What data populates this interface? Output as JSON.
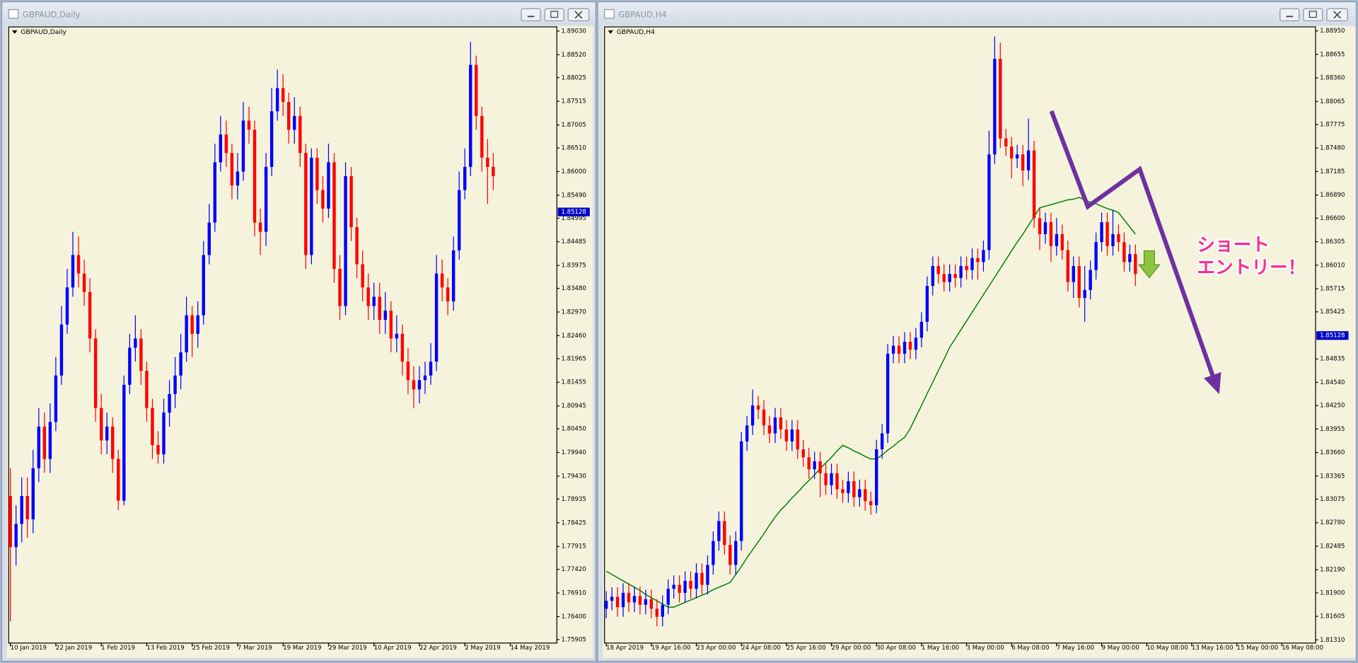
{
  "chart_data": [
    {
      "type": "candlestick",
      "window_title": "GBPAUD,Daily",
      "title": "GBPAUD,Daily",
      "background": "#f5f3dc",
      "up_color": "#0000ff",
      "down_color": "#ff0000",
      "grid": false,
      "xlim": [
        -0.3,
        96.2
      ],
      "ylim": [
        1.7583,
        1.8912
      ],
      "xticks": [
        {
          "value": 0,
          "label": "10 Jan 2019"
        },
        {
          "value": 8,
          "label": "22 Jan 2019"
        },
        {
          "value": 16,
          "label": "1 Feb 2019"
        },
        {
          "value": 24,
          "label": "13 Feb 2019"
        },
        {
          "value": 32,
          "label": "25 Feb 2019"
        },
        {
          "value": 40,
          "label": "7 Mar 2019"
        },
        {
          "value": 48,
          "label": "19 Mar 2019"
        },
        {
          "value": 56,
          "label": "29 Mar 2019"
        },
        {
          "value": 64,
          "label": "10 Apr 2019"
        },
        {
          "value": 72,
          "label": "22 Apr 2019"
        },
        {
          "value": 80,
          "label": "2 May 2019"
        },
        {
          "value": 88,
          "label": "14 May 2019"
        }
      ],
      "yticks": [
        {
          "value": 1.8903,
          "label": "1.89030"
        },
        {
          "value": 1.8852,
          "label": "1.88520"
        },
        1.88025,
        1.87515,
        1.87005,
        {
          "value": 1.8651,
          "label": "1.86510"
        },
        {
          "value": 1.86,
          "label": "1.86000"
        },
        {
          "value": 1.8549,
          "label": "1.85490"
        },
        1.84995,
        1.84485,
        1.83975,
        {
          "value": 1.8348,
          "label": "1.83480"
        },
        {
          "value": 1.8297,
          "label": "1.82970"
        },
        {
          "value": 1.8246,
          "label": "1.82460"
        },
        1.81965,
        1.81455,
        1.80945,
        {
          "value": 1.8045,
          "label": "1.80450"
        },
        {
          "value": 1.7994,
          "label": "1.79940"
        },
        {
          "value": 1.7943,
          "label": "1.79430"
        },
        1.78935,
        1.78425,
        1.77915,
        {
          "value": 1.7742,
          "label": "1.77420"
        },
        {
          "value": 1.7691,
          "label": "1.76910"
        },
        {
          "value": 1.764,
          "label": "1.76400"
        },
        1.75905
      ],
      "current_price": 1.85128,
      "open": [
        1.79,
        1.779,
        1.784,
        1.79,
        1.785,
        1.796,
        1.805,
        1.798,
        1.806,
        1.816,
        1.827,
        1.835,
        1.842,
        1.838,
        1.834,
        1.824,
        1.809,
        1.802,
        1.805,
        1.798,
        1.789,
        1.814,
        1.822,
        1.824,
        1.817,
        1.809,
        1.801,
        1.799,
        1.808,
        1.812,
        1.816,
        1.821,
        1.829,
        1.825,
        1.829,
        1.842,
        1.849,
        1.862,
        1.868,
        1.864,
        1.857,
        1.86,
        1.871,
        1.869,
        1.849,
        1.847,
        1.861,
        1.873,
        1.878,
        1.875,
        1.869,
        1.872,
        1.864,
        1.842,
        1.863,
        1.856,
        1.852,
        1.862,
        1.839,
        1.831,
        1.859,
        1.848,
        1.84,
        1.835,
        1.831,
        1.833,
        1.828,
        1.83,
        1.824,
        1.825,
        1.819,
        1.815,
        1.813,
        1.815,
        1.816,
        1.819,
        1.838,
        1.835,
        1.832,
        1.843,
        1.856,
        1.861,
        1.883,
        1.872,
        1.863,
        1.861
      ],
      "high": [
        1.796,
        1.788,
        1.794,
        1.794,
        1.8,
        1.809,
        1.808,
        1.81,
        1.82,
        1.831,
        1.839,
        1.847,
        1.846,
        1.841,
        1.837,
        1.826,
        1.812,
        1.808,
        1.807,
        1.8,
        1.816,
        1.825,
        1.829,
        1.826,
        1.819,
        1.811,
        1.804,
        1.811,
        1.815,
        1.82,
        1.825,
        1.833,
        1.831,
        1.832,
        1.845,
        1.853,
        1.866,
        1.872,
        1.871,
        1.866,
        1.864,
        1.875,
        1.874,
        1.871,
        1.852,
        1.864,
        1.878,
        1.882,
        1.881,
        1.877,
        1.876,
        1.874,
        1.866,
        1.865,
        1.865,
        1.859,
        1.866,
        1.864,
        1.842,
        1.862,
        1.861,
        1.85,
        1.843,
        1.838,
        1.836,
        1.836,
        1.834,
        1.832,
        1.829,
        1.827,
        1.822,
        1.818,
        1.818,
        1.819,
        1.823,
        1.842,
        1.841,
        1.837,
        1.846,
        1.86,
        1.865,
        1.888,
        1.885,
        1.874,
        1.867,
        1.864
      ],
      "low": [
        1.763,
        1.775,
        1.78,
        1.781,
        1.782,
        1.793,
        1.795,
        1.795,
        1.804,
        1.814,
        1.825,
        1.833,
        1.835,
        1.831,
        1.821,
        1.806,
        1.799,
        1.799,
        1.795,
        1.787,
        1.788,
        1.812,
        1.819,
        1.814,
        1.806,
        1.798,
        1.797,
        1.797,
        1.805,
        1.809,
        1.813,
        1.819,
        1.82,
        1.822,
        1.827,
        1.84,
        1.847,
        1.86,
        1.861,
        1.854,
        1.854,
        1.858,
        1.866,
        1.846,
        1.842,
        1.844,
        1.859,
        1.871,
        1.872,
        1.866,
        1.866,
        1.861,
        1.839,
        1.84,
        1.853,
        1.849,
        1.85,
        1.836,
        1.828,
        1.829,
        1.845,
        1.837,
        1.832,
        1.828,
        1.828,
        1.825,
        1.825,
        1.821,
        1.821,
        1.816,
        1.812,
        1.809,
        1.81,
        1.812,
        1.814,
        1.817,
        1.832,
        1.829,
        1.83,
        1.841,
        1.854,
        1.859,
        1.869,
        1.86,
        1.853,
        1.856
      ],
      "close": [
        1.779,
        1.784,
        1.79,
        1.785,
        1.796,
        1.805,
        1.798,
        1.806,
        1.816,
        1.827,
        1.835,
        1.842,
        1.838,
        1.834,
        1.824,
        1.809,
        1.802,
        1.805,
        1.798,
        1.789,
        1.814,
        1.822,
        1.824,
        1.817,
        1.809,
        1.801,
        1.799,
        1.808,
        1.812,
        1.816,
        1.821,
        1.829,
        1.825,
        1.829,
        1.842,
        1.849,
        1.862,
        1.868,
        1.864,
        1.857,
        1.86,
        1.871,
        1.869,
        1.849,
        1.847,
        1.861,
        1.873,
        1.878,
        1.875,
        1.869,
        1.872,
        1.864,
        1.842,
        1.863,
        1.856,
        1.852,
        1.862,
        1.839,
        1.831,
        1.859,
        1.848,
        1.84,
        1.835,
        1.831,
        1.833,
        1.828,
        1.83,
        1.824,
        1.825,
        1.819,
        1.815,
        1.813,
        1.815,
        1.816,
        1.819,
        1.838,
        1.835,
        1.832,
        1.843,
        1.856,
        1.861,
        1.883,
        1.872,
        1.863,
        1.861,
        1.859
      ]
    },
    {
      "type": "candlestick",
      "window_title": "GBPAUD,H4",
      "title": "GBPAUD,H4",
      "background": "#f5f3dc",
      "up_color": "#0000ff",
      "down_color": "#ff0000",
      "grid": false,
      "moving_average_color": "#008000",
      "annotation": [
        "ショート",
        "エントリー！"
      ],
      "xlim": [
        -0.31,
        126.0
      ],
      "ylim": [
        1.8127,
        1.89
      ],
      "xticks": [
        {
          "value": 0,
          "label": "18 Apr 2019"
        },
        {
          "value": 8,
          "label": "19 Apr 16:00"
        },
        {
          "value": 16,
          "label": "23 Apr 00:00"
        },
        {
          "value": 24,
          "label": "24 Apr 08:00"
        },
        {
          "value": 32,
          "label": "25 Apr 16:00"
        },
        {
          "value": 40,
          "label": "29 Apr 00:00"
        },
        {
          "value": 48,
          "label": "30 Apr 08:00"
        },
        {
          "value": 56,
          "label": "1 May 16:00"
        },
        {
          "value": 64,
          "label": "3 May 00:00"
        },
        {
          "value": 72,
          "label": "6 May 08:00"
        },
        {
          "value": 80,
          "label": "7 May 16:00"
        },
        {
          "value": 88,
          "label": "9 May 00:00"
        },
        {
          "value": 96,
          "label": "10 May 08:00"
        },
        {
          "value": 104,
          "label": "13 May 16:00"
        },
        {
          "value": 112,
          "label": "15 May 00:00"
        },
        {
          "value": 120,
          "label": "16 May 08:00"
        }
      ],
      "yticks": [
        {
          "value": 1.8895,
          "label": "1.88950"
        },
        1.88655,
        {
          "value": 1.8836,
          "label": "1.88360"
        },
        1.88065,
        1.87775,
        {
          "value": 1.8748,
          "label": "1.87480"
        },
        1.87185,
        {
          "value": 1.8689,
          "label": "1.86890"
        },
        {
          "value": 1.866,
          "label": "1.86600"
        },
        1.86305,
        {
          "value": 1.8601,
          "label": "1.86010"
        },
        1.85715,
        1.85425,
        1.84835,
        {
          "value": 1.8454,
          "label": "1.84540"
        },
        {
          "value": 1.8425,
          "label": "1.84250"
        },
        1.83955,
        {
          "value": 1.8366,
          "label": "1.83660"
        },
        1.83365,
        1.83075,
        {
          "value": 1.8278,
          "label": "1.82780"
        },
        1.82485,
        {
          "value": 1.8219,
          "label": "1.82190"
        },
        {
          "value": 1.819,
          "label": "1.81900"
        },
        1.81605,
        {
          "value": 1.8131,
          "label": "1.81310"
        }
      ],
      "current_price": 1.85128,
      "open": [
        1.817,
        1.818,
        1.8185,
        1.8172,
        1.819,
        1.8178,
        1.8186,
        1.8175,
        1.8182,
        1.817,
        1.816,
        1.8175,
        1.8195,
        1.82,
        1.819,
        1.8205,
        1.8195,
        1.8215,
        1.82,
        1.8225,
        1.8255,
        1.828,
        1.825,
        1.8225,
        1.8255,
        1.838,
        1.84,
        1.8425,
        1.842,
        1.84,
        1.839,
        1.841,
        1.8395,
        1.838,
        1.8395,
        1.837,
        1.836,
        1.8345,
        1.8355,
        1.834,
        1.8325,
        1.834,
        1.832,
        1.8315,
        1.833,
        1.831,
        1.832,
        1.8305,
        1.83,
        1.837,
        1.839,
        1.849,
        1.85,
        1.849,
        1.8505,
        1.8495,
        1.851,
        1.853,
        1.8575,
        1.86,
        1.859,
        1.858,
        1.859,
        1.8585,
        1.86,
        1.8595,
        1.861,
        1.8605,
        1.862,
        1.874,
        1.886,
        1.876,
        1.875,
        1.8735,
        1.874,
        1.872,
        1.8745,
        1.866,
        1.864,
        1.8655,
        1.8625,
        1.864,
        1.862,
        1.858,
        1.86,
        1.856,
        1.857,
        1.8595,
        1.863,
        1.8655,
        1.8625,
        1.864,
        1.863,
        1.8605,
        1.8615
      ],
      "high": [
        1.8192,
        1.8197,
        1.8197,
        1.8202,
        1.8202,
        1.8198,
        1.8198,
        1.8194,
        1.8194,
        1.8182,
        1.8187,
        1.8207,
        1.8212,
        1.8212,
        1.8217,
        1.8217,
        1.8227,
        1.8227,
        1.8237,
        1.8267,
        1.8292,
        1.8292,
        1.8262,
        1.8267,
        1.8392,
        1.8412,
        1.8445,
        1.8437,
        1.8432,
        1.8412,
        1.8422,
        1.8422,
        1.8407,
        1.8407,
        1.8407,
        1.8382,
        1.8372,
        1.8367,
        1.8367,
        1.8352,
        1.8352,
        1.8352,
        1.8332,
        1.8342,
        1.8342,
        1.8332,
        1.8332,
        1.8317,
        1.8382,
        1.8402,
        1.8502,
        1.8512,
        1.8512,
        1.8517,
        1.8517,
        1.8522,
        1.8542,
        1.8587,
        1.8612,
        1.8612,
        1.8602,
        1.8602,
        1.8602,
        1.8612,
        1.8612,
        1.8622,
        1.8622,
        1.8632,
        1.877,
        1.8888,
        1.888,
        1.8772,
        1.8762,
        1.8752,
        1.8752,
        1.8785,
        1.8757,
        1.8672,
        1.8667,
        1.8667,
        1.866,
        1.8652,
        1.8632,
        1.8612,
        1.8612,
        1.86,
        1.8607,
        1.8642,
        1.8667,
        1.8667,
        1.867,
        1.8652,
        1.8642,
        1.8627,
        1.8627
      ],
      "low": [
        1.8158,
        1.8168,
        1.816,
        1.816,
        1.8166,
        1.8166,
        1.8163,
        1.8163,
        1.8158,
        1.8148,
        1.8148,
        1.8163,
        1.8183,
        1.8178,
        1.8178,
        1.8183,
        1.8183,
        1.8188,
        1.8188,
        1.8213,
        1.8243,
        1.8238,
        1.8213,
        1.8213,
        1.8243,
        1.8368,
        1.8388,
        1.8408,
        1.8388,
        1.8378,
        1.8378,
        1.8383,
        1.8368,
        1.8368,
        1.8358,
        1.8348,
        1.8333,
        1.8333,
        1.831,
        1.8313,
        1.8313,
        1.8308,
        1.8303,
        1.8303,
        1.8298,
        1.8298,
        1.8293,
        1.8288,
        1.829,
        1.8358,
        1.8378,
        1.8478,
        1.8478,
        1.8478,
        1.8483,
        1.8483,
        1.8498,
        1.8518,
        1.8563,
        1.8578,
        1.8568,
        1.8568,
        1.8573,
        1.8573,
        1.8583,
        1.8583,
        1.8583,
        1.8593,
        1.8608,
        1.8728,
        1.8748,
        1.8738,
        1.871,
        1.8723,
        1.87,
        1.8708,
        1.8648,
        1.862,
        1.8628,
        1.8605,
        1.8613,
        1.8608,
        1.8568,
        1.856,
        1.8548,
        1.853,
        1.8558,
        1.8583,
        1.8618,
        1.8613,
        1.8613,
        1.8618,
        1.8593,
        1.8593,
        1.8575
      ],
      "close": [
        1.818,
        1.8185,
        1.8172,
        1.819,
        1.8178,
        1.8186,
        1.8175,
        1.8182,
        1.817,
        1.816,
        1.8175,
        1.8195,
        1.82,
        1.819,
        1.8205,
        1.8195,
        1.8215,
        1.82,
        1.8225,
        1.8255,
        1.828,
        1.825,
        1.8225,
        1.8255,
        1.838,
        1.84,
        1.8425,
        1.842,
        1.84,
        1.839,
        1.841,
        1.8395,
        1.838,
        1.8395,
        1.837,
        1.836,
        1.8345,
        1.8355,
        1.834,
        1.8325,
        1.834,
        1.832,
        1.8315,
        1.833,
        1.831,
        1.832,
        1.8305,
        1.83,
        1.837,
        1.839,
        1.849,
        1.85,
        1.849,
        1.8505,
        1.8495,
        1.851,
        1.853,
        1.8575,
        1.86,
        1.859,
        1.858,
        1.859,
        1.8585,
        1.86,
        1.8595,
        1.861,
        1.8605,
        1.862,
        1.874,
        1.886,
        1.876,
        1.875,
        1.8735,
        1.874,
        1.872,
        1.8745,
        1.866,
        1.864,
        1.8655,
        1.8625,
        1.864,
        1.862,
        1.858,
        1.86,
        1.856,
        1.857,
        1.8595,
        1.863,
        1.8655,
        1.8625,
        1.864,
        1.863,
        1.8605,
        1.8615,
        1.859
      ],
      "moving_average": [
        1.8217,
        1.8213,
        1.8209,
        1.8205,
        1.8201,
        1.8197,
        1.8193,
        1.8188,
        1.8184,
        1.818,
        1.8176,
        1.8172,
        1.8172,
        1.8175,
        1.8178,
        1.8181,
        1.8184,
        1.8187,
        1.819,
        1.8194,
        1.8197,
        1.82,
        1.8203,
        1.8213,
        1.8223,
        1.8234,
        1.8244,
        1.8254,
        1.8264,
        1.8275,
        1.8285,
        1.8294,
        1.8301,
        1.8309,
        1.8316,
        1.8324,
        1.8331,
        1.8338,
        1.8346,
        1.8353,
        1.836,
        1.8368,
        1.8375,
        1.8372,
        1.8368,
        1.8365,
        1.8361,
        1.8358,
        1.8358,
        1.8363,
        1.8369,
        1.8374,
        1.838,
        1.8385,
        1.8396,
        1.8411,
        1.8425,
        1.844,
        1.8454,
        1.8469,
        1.8483,
        1.8498,
        1.8509,
        1.852,
        1.8531,
        1.8542,
        1.8553,
        1.8564,
        1.8575,
        1.8586,
        1.8597,
        1.8608,
        1.8619,
        1.863,
        1.864,
        1.8651,
        1.8662,
        1.8673,
        1.8675,
        1.8677,
        1.8679,
        1.8681,
        1.8683,
        1.8684,
        1.8686,
        1.8683,
        1.868,
        1.8678,
        1.8675,
        1.8672,
        1.867,
        1.8667,
        1.8658,
        1.8649,
        1.864
      ]
    }
  ]
}
